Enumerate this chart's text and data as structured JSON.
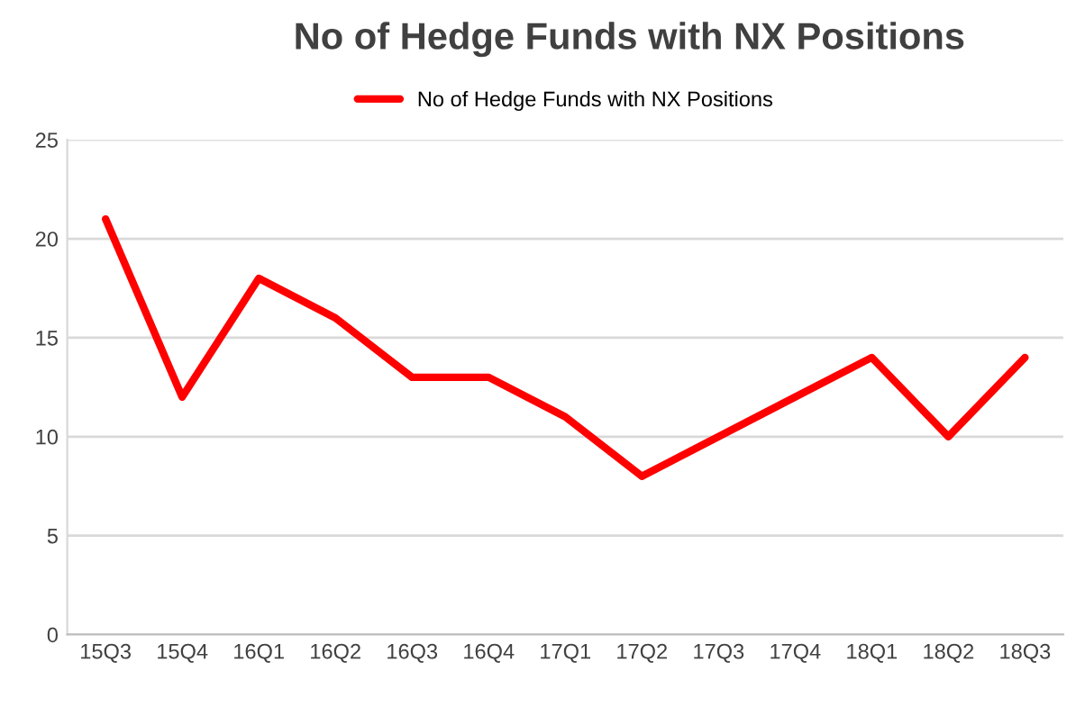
{
  "chart_data": {
    "type": "line",
    "title": "No of Hedge Funds with NX Positions",
    "categories": [
      "15Q3",
      "15Q4",
      "16Q1",
      "16Q2",
      "16Q3",
      "16Q4",
      "17Q1",
      "17Q2",
      "17Q3",
      "17Q4",
      "18Q1",
      "18Q2",
      "18Q3"
    ],
    "series": [
      {
        "name": "No of Hedge Funds with NX Positions",
        "color": "#ff0000",
        "values": [
          21,
          12,
          18,
          16,
          13,
          13,
          11,
          8,
          10,
          12,
          14,
          10,
          14
        ]
      }
    ],
    "ylim": [
      0,
      25
    ],
    "yticks": [
      0,
      5,
      10,
      15,
      20,
      25
    ],
    "grid": "y",
    "legend": "top",
    "marker": "none",
    "line_style": "solid"
  }
}
